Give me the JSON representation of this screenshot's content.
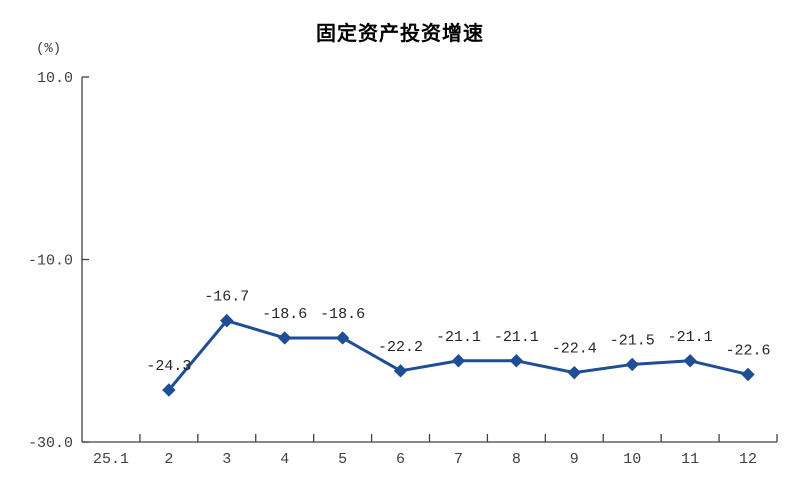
{
  "chart_data": {
    "type": "line",
    "title": "固定资产投资增速",
    "unit_label": "(%)",
    "categories": [
      "25.1",
      "2",
      "3",
      "4",
      "5",
      "6",
      "7",
      "8",
      "9",
      "10",
      "11",
      "12"
    ],
    "series": [
      {
        "name": "固定资产投资增速",
        "values": [
          null,
          -24.3,
          -16.7,
          -18.6,
          -18.6,
          -22.2,
          -21.1,
          -21.1,
          -22.4,
          -21.5,
          -21.1,
          -22.6
        ],
        "labels": [
          "",
          "-24.3",
          "-16.7",
          "-18.6",
          "-18.6",
          "-22.2",
          "-21.1",
          "-21.1",
          "-22.4",
          "-21.5",
          "-21.1",
          "-22.6"
        ],
        "color": "#1F4E96"
      }
    ],
    "xlabel": "",
    "ylabel": "(%)",
    "ylim": [
      -30,
      10
    ],
    "y_ticks": [
      {
        "value": 10,
        "label": "10.0"
      },
      {
        "value": -10,
        "label": "-10.0"
      },
      {
        "value": -30,
        "label": "-30.0"
      }
    ],
    "grid": false,
    "legend": false,
    "marker": "diamond",
    "colors": {
      "line": "#1F4E96",
      "axis": "#404040",
      "tick_label": "#404040",
      "data_label": "#262626",
      "title": "#000000",
      "background": "#FFFFFF"
    }
  }
}
